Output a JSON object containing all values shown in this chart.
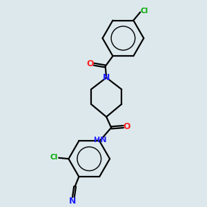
{
  "bg_color": "#dce8ec",
  "bond_color": "#000000",
  "N_color": "#2020ff",
  "O_color": "#ff2020",
  "Cl_color": "#00aa00",
  "lw": 1.6,
  "dbo": 0.055,
  "xlim": [
    0,
    10
  ],
  "ylim": [
    0,
    10
  ]
}
